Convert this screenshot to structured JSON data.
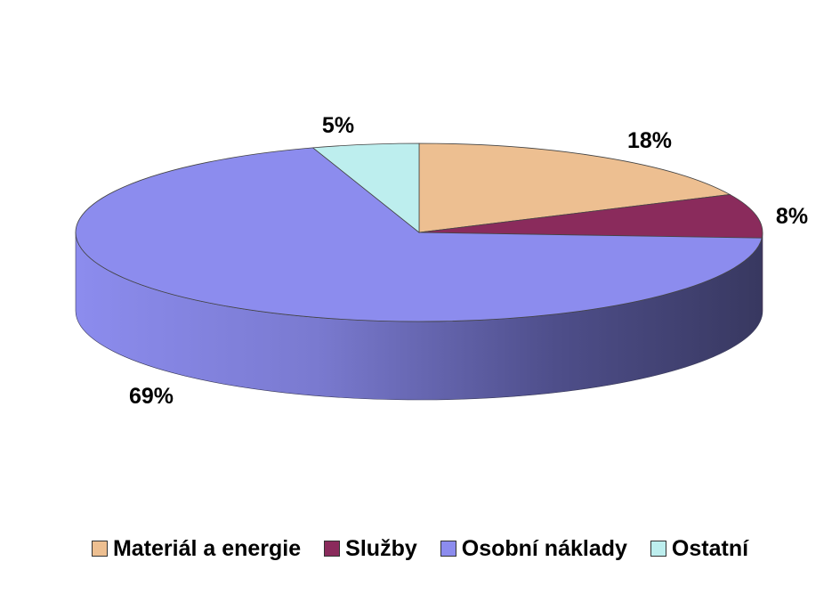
{
  "chart_data": {
    "type": "pie",
    "style": "3d",
    "title": "",
    "categories": [
      "Materiál a energie",
      "Služby",
      "Osobní náklady",
      "Ostatní"
    ],
    "values": [
      18,
      8,
      69,
      5
    ],
    "data_labels": [
      "18%",
      "8%",
      "69%",
      "5%"
    ],
    "colors": [
      "#EDBF91",
      "#8A2B5C",
      "#8C8CEE",
      "#BDEEEE"
    ],
    "legend": {
      "position": "bottom"
    }
  }
}
